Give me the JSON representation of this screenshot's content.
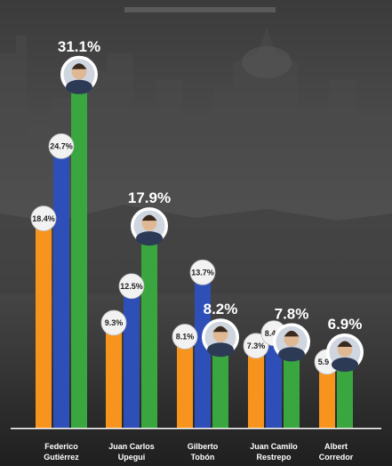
{
  "chart_data": {
    "type": "bar",
    "title": "",
    "xlabel": "",
    "ylabel": "",
    "ylim": [
      0,
      32
    ],
    "categories": [
      [
        "Federico",
        "Gutiérrez"
      ],
      [
        "Juan Carlos",
        "Upegui"
      ],
      [
        "Gilberto",
        "Tobón"
      ],
      [
        "Juan Camilo",
        "Restrepo"
      ],
      [
        "Albert",
        "Corredor"
      ]
    ],
    "series": [
      {
        "color": "#f7941d",
        "values": [
          18.4,
          9.3,
          8.1,
          7.3,
          5.9
        ],
        "labels": [
          "18.4%",
          "9.3%",
          "8.1%",
          "7.3%",
          "5.9%"
        ]
      },
      {
        "color": "#2e4fb8",
        "values": [
          24.7,
          12.5,
          13.7,
          8.4,
          null
        ],
        "labels": [
          "24.7%",
          "12.5%",
          "13.7%",
          "8.4%",
          ""
        ]
      },
      {
        "color": "#3aa63f",
        "values": [
          31.1,
          17.9,
          8.2,
          7.8,
          6.9
        ],
        "labels": [
          "31.1%",
          "17.9%",
          "8.2%",
          "7.8%",
          "6.9%"
        ]
      }
    ],
    "grid": false,
    "legend": "none"
  },
  "colors": {
    "background": "#2b2b2b",
    "orange": "#f7941d",
    "blue": "#2e4fb8",
    "green": "#3aa63f",
    "text": "#ffffff"
  }
}
